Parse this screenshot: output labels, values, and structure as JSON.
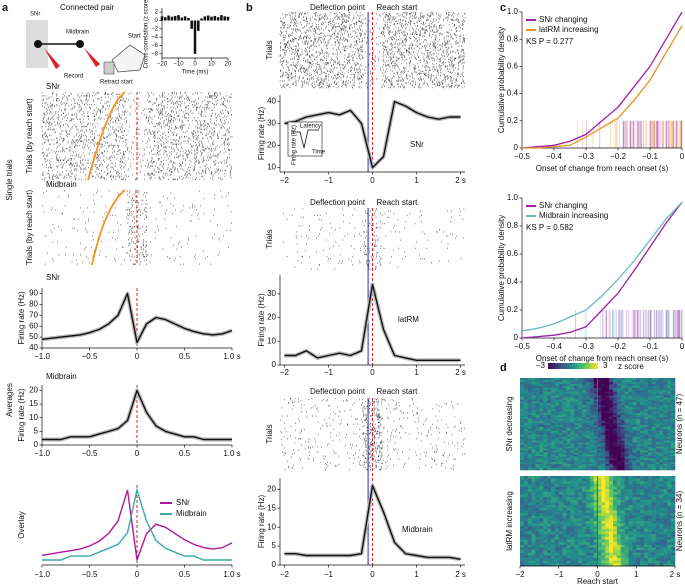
{
  "chart_data": [
    {
      "type": "bar",
      "ylabel": "Cross-correlation (z score)",
      "xlabel": "Time (ms)",
      "x": [
        -20,
        -18,
        -16,
        -14,
        -12,
        -10,
        -8,
        -6,
        -4,
        -2,
        0,
        2,
        4,
        6,
        8,
        10,
        12,
        14,
        16,
        18,
        20
      ],
      "values": [
        1,
        0.8,
        1.2,
        0.9,
        1.1,
        1.3,
        0.7,
        1,
        0.6,
        -2,
        -8,
        -2.5,
        0.5,
        1,
        1.2,
        0.9,
        1.1,
        0.8,
        1.3,
        1,
        0.9
      ],
      "color": "#111111",
      "xlim": [
        -20,
        20
      ],
      "ylim": [
        -9,
        3
      ],
      "xticks": [
        {
          "value": -20,
          "label": "−20"
        },
        {
          "value": -10,
          "label": "−10"
        },
        0,
        10,
        20
      ],
      "yticks": [
        2,
        0,
        {
          "value": -2,
          "label": "−2"
        },
        {
          "value": -4,
          "label": "−4"
        },
        {
          "value": -6,
          "label": "−6"
        },
        {
          "value": -8,
          "label": "−8"
        }
      ]
    },
    {
      "type": "line",
      "label": "SNr",
      "ylabel": "Firing rate (Hz)",
      "x": [
        -1,
        -0.9,
        -0.8,
        -0.7,
        -0.6,
        -0.5,
        -0.4,
        -0.3,
        -0.2,
        -0.1,
        0,
        0.1,
        0.2,
        0.3,
        0.4,
        0.5,
        0.6,
        0.7,
        0.8,
        0.9,
        1
      ],
      "values": [
        48,
        49,
        50,
        51,
        52,
        54,
        57,
        62,
        70,
        90,
        45,
        62,
        68,
        66,
        62,
        58,
        55,
        53,
        52,
        53,
        56
      ],
      "color": "#111111",
      "xlim": [
        -1,
        1
      ],
      "ylim": [
        40,
        95
      ],
      "xticks": [
        {
          "value": -1,
          "label": "−1.0"
        },
        {
          "value": -0.5,
          "label": "−0.5"
        },
        0,
        0.5,
        {
          "value": 1,
          "label": "1.0 s"
        }
      ],
      "yticks": [
        40,
        50,
        60,
        70,
        80,
        90
      ],
      "markers": [
        {
          "x": 0,
          "color": "#e0262b"
        }
      ]
    },
    {
      "type": "line",
      "label": "Midbrain",
      "ylabel": "Firing rate (Hz)",
      "x": [
        -1,
        -0.9,
        -0.8,
        -0.7,
        -0.6,
        -0.5,
        -0.4,
        -0.3,
        -0.2,
        -0.1,
        0,
        0.1,
        0.2,
        0.3,
        0.4,
        0.5,
        0.6,
        0.7,
        0.8,
        0.9,
        1
      ],
      "values": [
        2,
        2,
        2,
        3,
        3,
        3,
        4,
        5,
        6,
        9,
        20,
        12,
        7,
        5,
        4,
        3,
        3,
        2,
        2,
        2,
        2
      ],
      "color": "#111111",
      "xlim": [
        -1,
        1
      ],
      "ylim": [
        0,
        22
      ],
      "xticks": [
        {
          "value": -1,
          "label": "−1.0"
        },
        {
          "value": -0.5,
          "label": "−0.5"
        },
        0,
        0.5,
        {
          "value": 1,
          "label": "1.0 s"
        }
      ],
      "yticks": [
        0,
        5,
        10,
        15,
        20
      ],
      "markers": [
        {
          "x": 0,
          "color": "#e0262b"
        }
      ]
    },
    {
      "type": "overlay",
      "label": "Overlay",
      "xlim": [
        -1,
        1
      ],
      "xticks": [
        {
          "value": -1,
          "label": "−1.0"
        },
        {
          "value": -0.5,
          "label": "−0.5"
        },
        0,
        0.5,
        {
          "value": 1,
          "label": "1.0 s"
        }
      ],
      "series": [
        {
          "name": "SNr",
          "color": "#b0179b"
        },
        {
          "name": "Midbrain",
          "color": "#3aa8a8"
        }
      ],
      "markers": [
        {
          "x": 0,
          "color": "#e0262b"
        }
      ]
    },
    {
      "type": "line",
      "label": "SNr",
      "ylabel": "Firing rate (Hz)",
      "raster_label": "Trials",
      "x": [
        -2,
        -1.75,
        -1.5,
        -1.25,
        -1,
        -0.75,
        -0.5,
        -0.25,
        0,
        0.25,
        0.5,
        0.75,
        1,
        1.25,
        1.5,
        1.75,
        2
      ],
      "values": [
        30,
        31,
        33,
        34,
        35,
        34,
        36,
        30,
        10,
        15,
        40,
        38,
        35,
        33,
        32,
        33,
        33
      ],
      "color": "#111111",
      "xlim": [
        -2.1,
        2.1
      ],
      "ylim": [
        8,
        43
      ],
      "xticks": [
        {
          "value": -2,
          "label": "−2"
        },
        {
          "value": -1,
          "label": "−1"
        },
        0,
        1,
        {
          "value": 2,
          "label": "2 s"
        }
      ],
      "yticks": [
        10,
        20,
        30,
        40
      ],
      "markers": [
        {
          "label": "Deflection point",
          "x": -0.1,
          "color": "#2b2bb8"
        },
        {
          "label": "Reach start",
          "x": 0,
          "color": "#e0262b"
        }
      ],
      "inset": [
        "Latency",
        "Firing rate (Hz)",
        "Time"
      ]
    },
    {
      "type": "line",
      "label": "latRM",
      "ylabel": "Firing rate (Hz)",
      "raster_label": "Trials",
      "x": [
        -2,
        -1.75,
        -1.5,
        -1.25,
        -1,
        -0.75,
        -0.5,
        -0.25,
        0,
        0.25,
        0.5,
        0.75,
        1,
        1.25,
        1.5,
        1.75,
        2
      ],
      "values": [
        4,
        4,
        6,
        3,
        4,
        5,
        4,
        6,
        34,
        15,
        4,
        3,
        2,
        2,
        2,
        2,
        2
      ],
      "color": "#111111",
      "xlim": [
        -2.1,
        2.1
      ],
      "ylim": [
        0,
        38
      ],
      "xticks": [
        {
          "value": -2,
          "label": "−2"
        },
        {
          "value": -1,
          "label": "−1"
        },
        0,
        1,
        {
          "value": 2,
          "label": "2 s"
        }
      ],
      "yticks": [
        0,
        10,
        20,
        30
      ],
      "markers": [
        {
          "label": "Deflection point",
          "x": -0.1,
          "color": "#2b2bb8"
        },
        {
          "label": "Reach start",
          "x": 0,
          "color": "#e0262b"
        }
      ]
    },
    {
      "type": "line",
      "label": "Midbrain",
      "ylabel": "Firing rate (Hz)",
      "raster_label": "Trials",
      "x": [
        -2,
        -1.75,
        -1.5,
        -1.25,
        -1,
        -0.75,
        -0.5,
        -0.25,
        0,
        0.25,
        0.5,
        0.75,
        1,
        1.25,
        1.5,
        1.75,
        2
      ],
      "values": [
        3,
        3,
        2.5,
        2.5,
        2.5,
        2.5,
        2.5,
        3,
        21,
        14,
        6,
        3,
        2.5,
        2,
        2,
        2,
        1.5
      ],
      "color": "#111111",
      "xlim": [
        -2.1,
        2.1
      ],
      "ylim": [
        0,
        23
      ],
      "xticks": [
        {
          "value": -2,
          "label": "−2"
        },
        {
          "value": -1,
          "label": "−1"
        },
        0,
        1,
        {
          "value": 2,
          "label": "2 s"
        }
      ],
      "yticks": [
        0,
        5,
        10,
        15,
        20
      ],
      "markers": [
        {
          "label": "Deflection point",
          "x": -0.1,
          "color": "#2b2bb8"
        },
        {
          "label": "Reach start",
          "x": 0,
          "color": "#e0262b"
        }
      ]
    },
    {
      "type": "cdf",
      "ylabel": "Cumulative probability density",
      "xlabel": "Onset of change from reach onset (s)",
      "x": [
        -0.5,
        -0.45,
        -0.4,
        -0.35,
        -0.3,
        -0.25,
        -0.2,
        -0.15,
        -0.1,
        -0.05,
        0
      ],
      "series": [
        {
          "name": "SNr changing",
          "color": "#a020a8",
          "values": [
            0,
            0.01,
            0.02,
            0.05,
            0.1,
            0.2,
            0.3,
            0.45,
            0.6,
            0.8,
            1
          ]
        },
        {
          "name": "latRM increasing",
          "color": "#e8901e",
          "values": [
            0,
            0,
            0.01,
            0.02,
            0.08,
            0.15,
            0.22,
            0.35,
            0.5,
            0.7,
            0.9
          ]
        }
      ],
      "annotation": "KS P = 0.277",
      "xlim": [
        -0.5,
        0
      ],
      "ylim": [
        0,
        1
      ],
      "xticks": [
        {
          "value": -0.5,
          "label": "−0.5"
        },
        {
          "value": -0.4,
          "label": "−0.4"
        },
        {
          "value": -0.3,
          "label": "−0.3"
        },
        {
          "value": -0.2,
          "label": "−0.2"
        },
        {
          "value": -0.1,
          "label": "−0.1"
        },
        0
      ],
      "yticks": [
        0,
        0.2,
        0.4,
        0.6,
        0.8,
        {
          "value": 1,
          "label": "1.0"
        }
      ]
    },
    {
      "type": "cdf",
      "ylabel": "Cumulative probability density",
      "xlabel": "Onset of change from reach onset (s)",
      "x": [
        -0.5,
        -0.45,
        -0.4,
        -0.35,
        -0.3,
        -0.25,
        -0.2,
        -0.15,
        -0.1,
        -0.05,
        0
      ],
      "series": [
        {
          "name": "SNr changing",
          "color": "#a020a8",
          "values": [
            0,
            0.01,
            0.02,
            0.04,
            0.08,
            0.2,
            0.32,
            0.48,
            0.65,
            0.82,
            0.97
          ]
        },
        {
          "name": "Midbrain increasing",
          "color": "#6cb8c0",
          "values": [
            0.05,
            0.07,
            0.1,
            0.15,
            0.2,
            0.3,
            0.42,
            0.55,
            0.7,
            0.85,
            0.97
          ]
        }
      ],
      "annotation": "KS P = 0.582",
      "xlim": [
        -0.5,
        0
      ],
      "ylim": [
        0,
        1
      ],
      "xticks": [
        {
          "value": -0.5,
          "label": "−0.5"
        },
        {
          "value": -0.4,
          "label": "−0.4"
        },
        {
          "value": -0.3,
          "label": "−0.3"
        },
        {
          "value": -0.2,
          "label": "−0.2"
        },
        {
          "value": -0.1,
          "label": "−0.1"
        },
        0
      ],
      "yticks": [
        0,
        0.2,
        0.4,
        0.6,
        0.8,
        {
          "value": 1,
          "label": "1.0"
        }
      ]
    },
    {
      "type": "heatmap",
      "xlabel": "Reach start",
      "xlim": [
        -2,
        2
      ],
      "xticks": [
        {
          "value": -2,
          "label": "−2"
        },
        {
          "value": -1,
          "label": "−1"
        },
        0,
        1,
        {
          "value": 2,
          "label": "2 s"
        }
      ],
      "colorbar": {
        "ticks": [
          {
            "value": -3,
            "label": "−3"
          },
          3
        ],
        "label": "z score"
      },
      "maps": [
        {
          "label": "SNr decreasing",
          "ylabel": "Neurons (n = 47)"
        },
        {
          "label": "latRM increasing",
          "ylabel": "Neurons (n = 34)"
        }
      ],
      "markers": [
        {
          "x": 0,
          "color": "#e0262b"
        }
      ]
    }
  ],
  "figure": {
    "panels": [
      "a",
      "b",
      "c",
      "d"
    ],
    "schematic": [
      "Connected pair",
      "SNr",
      "Midbrain",
      "Record",
      "Start",
      "Retract start"
    ],
    "groups": [
      "Single trials",
      "Averages"
    ],
    "rasters": [
      {
        "label": "SNr",
        "ylabel": "Trials (by reach start)"
      },
      {
        "label": "Midbrain",
        "ylabel": "Trials (by reach start)"
      }
    ]
  }
}
